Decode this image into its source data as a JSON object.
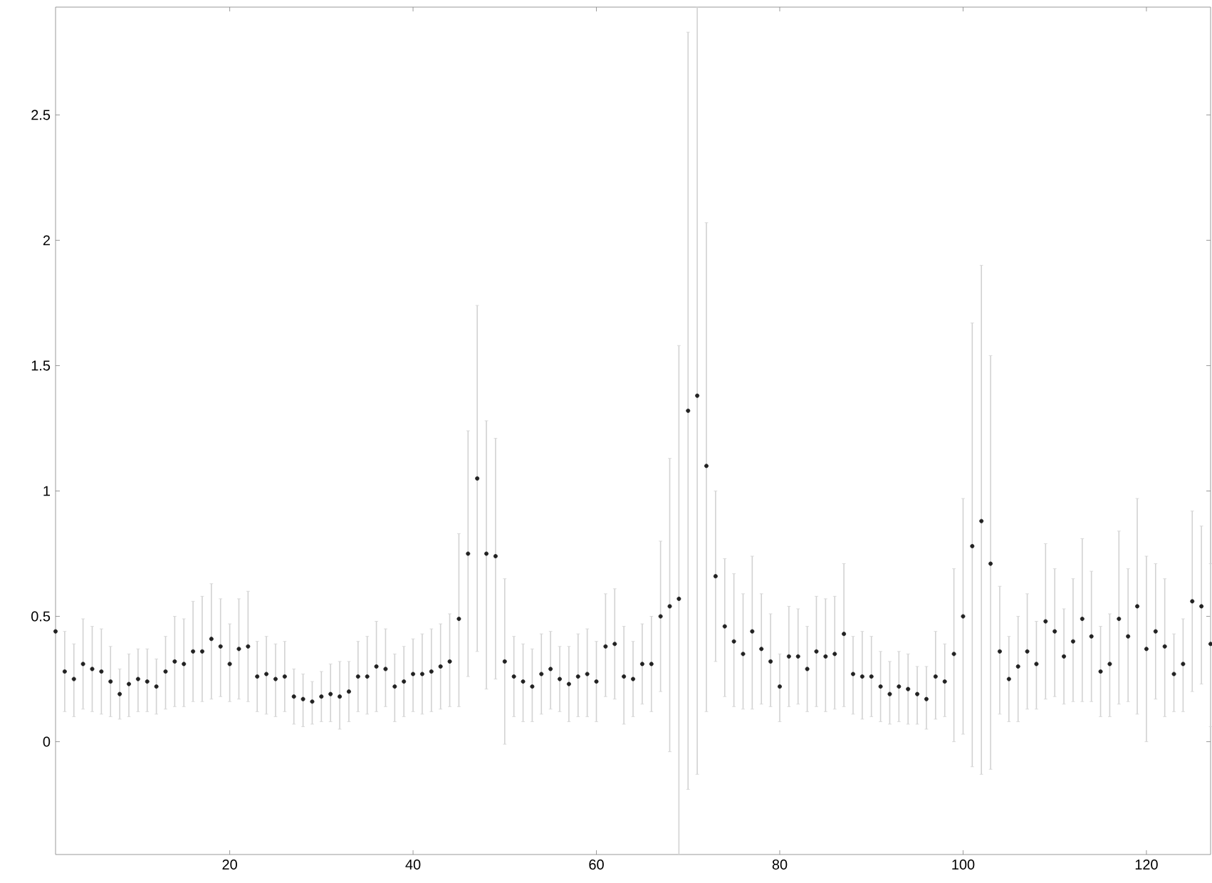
{
  "chart_data": {
    "type": "scatter",
    "marker": "circle",
    "grid": false,
    "xlim": [
      1,
      127
    ],
    "ylim": [
      -0.45,
      2.93
    ],
    "xticks": [
      20,
      40,
      60,
      80,
      100,
      120
    ],
    "yticks": [
      0,
      0.5,
      1,
      1.5,
      2,
      2.5
    ],
    "series": [
      {
        "color": "#222222",
        "x": [
          1,
          2,
          3,
          4,
          5,
          6,
          7,
          8,
          9,
          10,
          11,
          12,
          13,
          14,
          15,
          16,
          17,
          18,
          19,
          20,
          21,
          22,
          23,
          24,
          25,
          26,
          27,
          28,
          29,
          30,
          31,
          32,
          33,
          34,
          35,
          36,
          37,
          38,
          39,
          40,
          41,
          42,
          43,
          44,
          45,
          46,
          47,
          48,
          49,
          50,
          51,
          52,
          53,
          54,
          55,
          56,
          57,
          58,
          59,
          60,
          61,
          62,
          63,
          64,
          65,
          66,
          67,
          68,
          69,
          70,
          71,
          72,
          73,
          74,
          75,
          76,
          77,
          78,
          79,
          80,
          81,
          82,
          83,
          84,
          85,
          86,
          87,
          88,
          89,
          90,
          91,
          92,
          93,
          94,
          95,
          96,
          97,
          98,
          99,
          100,
          101,
          102,
          103,
          104,
          105,
          106,
          107,
          108,
          109,
          110,
          111,
          112,
          113,
          114,
          115,
          116,
          117,
          118,
          119,
          120,
          121,
          122,
          123,
          124,
          125,
          126,
          127
        ],
        "values": [
          0.44,
          0.28,
          0.25,
          0.31,
          0.29,
          0.28,
          0.24,
          0.19,
          0.23,
          0.25,
          0.24,
          0.22,
          0.28,
          0.32,
          0.31,
          0.36,
          0.36,
          0.41,
          0.38,
          0.31,
          0.37,
          0.38,
          0.26,
          0.27,
          0.25,
          0.26,
          0.18,
          0.17,
          0.16,
          0.18,
          0.19,
          0.18,
          0.2,
          0.26,
          0.26,
          0.3,
          0.29,
          0.22,
          0.24,
          0.27,
          0.27,
          0.28,
          0.3,
          0.32,
          0.49,
          0.75,
          1.05,
          0.75,
          0.74,
          0.32,
          0.26,
          0.24,
          0.22,
          0.27,
          0.29,
          0.25,
          0.23,
          0.26,
          0.27,
          0.24,
          0.38,
          0.39,
          0.26,
          0.25,
          0.31,
          0.31,
          0.5,
          0.54,
          0.57,
          1.32,
          1.38,
          1.1,
          0.66,
          0.46,
          0.4,
          0.35,
          0.44,
          0.37,
          0.32,
          0.22,
          0.34,
          0.34,
          0.29,
          0.36,
          0.34,
          0.35,
          0.43,
          0.27,
          0.26,
          0.26,
          0.22,
          0.19,
          0.22,
          0.21,
          0.19,
          0.17,
          0.26,
          0.24,
          0.35,
          0.5,
          0.78,
          0.88,
          0.71,
          0.36,
          0.25,
          0.3,
          0.36,
          0.31,
          0.48,
          0.44,
          0.34,
          0.4,
          0.49,
          0.42,
          0.28,
          0.31,
          0.49,
          0.42,
          0.54,
          0.37,
          0.44,
          0.38,
          0.27,
          0.31,
          0.56,
          0.54,
          0.39
        ],
        "errors": [
          null,
          [
            0.12,
            0.44
          ],
          [
            0.1,
            0.39
          ],
          [
            0.13,
            0.49
          ],
          [
            0.12,
            0.46
          ],
          [
            0.11,
            0.45
          ],
          [
            0.1,
            0.38
          ],
          [
            0.09,
            0.29
          ],
          [
            0.1,
            0.35
          ],
          [
            0.12,
            0.37
          ],
          [
            0.12,
            0.37
          ],
          [
            0.11,
            0.33
          ],
          [
            0.13,
            0.42
          ],
          [
            0.14,
            0.5
          ],
          [
            0.14,
            0.49
          ],
          [
            0.16,
            0.56
          ],
          [
            0.16,
            0.58
          ],
          [
            0.17,
            0.63
          ],
          [
            0.18,
            0.57
          ],
          [
            0.16,
            0.47
          ],
          [
            0.17,
            0.57
          ],
          [
            0.16,
            0.6
          ],
          [
            0.12,
            0.4
          ],
          [
            0.11,
            0.42
          ],
          [
            0.1,
            0.39
          ],
          [
            0.12,
            0.4
          ],
          [
            0.07,
            0.29
          ],
          [
            0.06,
            0.27
          ],
          [
            0.07,
            0.24
          ],
          [
            0.08,
            0.28
          ],
          [
            0.08,
            0.31
          ],
          [
            0.05,
            0.32
          ],
          [
            0.08,
            0.32
          ],
          [
            0.12,
            0.4
          ],
          [
            0.11,
            0.42
          ],
          [
            0.12,
            0.48
          ],
          [
            0.14,
            0.45
          ],
          [
            0.08,
            0.35
          ],
          [
            0.1,
            0.38
          ],
          [
            0.12,
            0.41
          ],
          [
            0.11,
            0.43
          ],
          [
            0.12,
            0.45
          ],
          [
            0.13,
            0.47
          ],
          [
            0.14,
            0.51
          ],
          [
            0.14,
            0.83
          ],
          [
            0.26,
            1.24
          ],
          [
            0.36,
            1.74
          ],
          [
            0.21,
            1.28
          ],
          [
            0.25,
            1.21
          ],
          [
            -0.01,
            0.65
          ],
          [
            0.1,
            0.42
          ],
          [
            0.08,
            0.39
          ],
          [
            0.08,
            0.37
          ],
          [
            0.11,
            0.43
          ],
          [
            0.13,
            0.44
          ],
          [
            0.12,
            0.38
          ],
          [
            0.08,
            0.38
          ],
          [
            0.1,
            0.43
          ],
          [
            0.1,
            0.45
          ],
          [
            0.08,
            0.4
          ],
          [
            0.18,
            0.59
          ],
          [
            0.17,
            0.61
          ],
          [
            0.07,
            0.46
          ],
          [
            0.1,
            0.4
          ],
          [
            0.15,
            0.47
          ],
          [
            0.12,
            0.5
          ],
          [
            0.2,
            0.8
          ],
          [
            -0.04,
            1.13
          ],
          [
            -0.45,
            1.58
          ],
          [
            -0.19,
            2.83
          ],
          [
            -0.13,
            2.93
          ],
          [
            0.12,
            2.07
          ],
          [
            0.32,
            1.0
          ],
          [
            0.18,
            0.73
          ],
          [
            0.14,
            0.67
          ],
          [
            0.13,
            0.59
          ],
          [
            0.13,
            0.74
          ],
          [
            0.15,
            0.59
          ],
          [
            0.14,
            0.51
          ],
          [
            0.08,
            0.35
          ],
          [
            0.14,
            0.54
          ],
          [
            0.15,
            0.53
          ],
          [
            0.12,
            0.46
          ],
          [
            0.14,
            0.58
          ],
          [
            0.12,
            0.57
          ],
          [
            0.13,
            0.58
          ],
          [
            0.14,
            0.71
          ],
          [
            0.11,
            0.42
          ],
          [
            0.09,
            0.44
          ],
          [
            0.1,
            0.42
          ],
          [
            0.08,
            0.36
          ],
          [
            0.07,
            0.32
          ],
          [
            0.08,
            0.36
          ],
          [
            0.07,
            0.35
          ],
          [
            0.07,
            0.3
          ],
          [
            0.05,
            0.3
          ],
          [
            0.09,
            0.44
          ],
          [
            0.1,
            0.39
          ],
          [
            0.0,
            0.69
          ],
          [
            0.03,
            0.97
          ],
          [
            -0.1,
            1.67
          ],
          [
            -0.13,
            1.9
          ],
          [
            -0.11,
            1.54
          ],
          [
            0.11,
            0.62
          ],
          [
            0.08,
            0.42
          ],
          [
            0.08,
            0.5
          ],
          [
            0.13,
            0.59
          ],
          [
            0.13,
            0.48
          ],
          [
            0.17,
            0.79
          ],
          [
            0.18,
            0.69
          ],
          [
            0.15,
            0.53
          ],
          [
            0.16,
            0.65
          ],
          [
            0.16,
            0.81
          ],
          [
            0.16,
            0.68
          ],
          [
            0.1,
            0.46
          ],
          [
            0.1,
            0.51
          ],
          [
            0.15,
            0.84
          ],
          [
            0.16,
            0.69
          ],
          [
            0.11,
            0.97
          ],
          [
            0.0,
            0.74
          ],
          [
            0.17,
            0.71
          ],
          [
            0.1,
            0.65
          ],
          [
            0.12,
            0.43
          ],
          [
            0.12,
            0.49
          ],
          [
            0.2,
            0.92
          ],
          [
            0.23,
            0.86
          ],
          [
            0.06,
            0.71
          ]
        ]
      }
    ]
  }
}
